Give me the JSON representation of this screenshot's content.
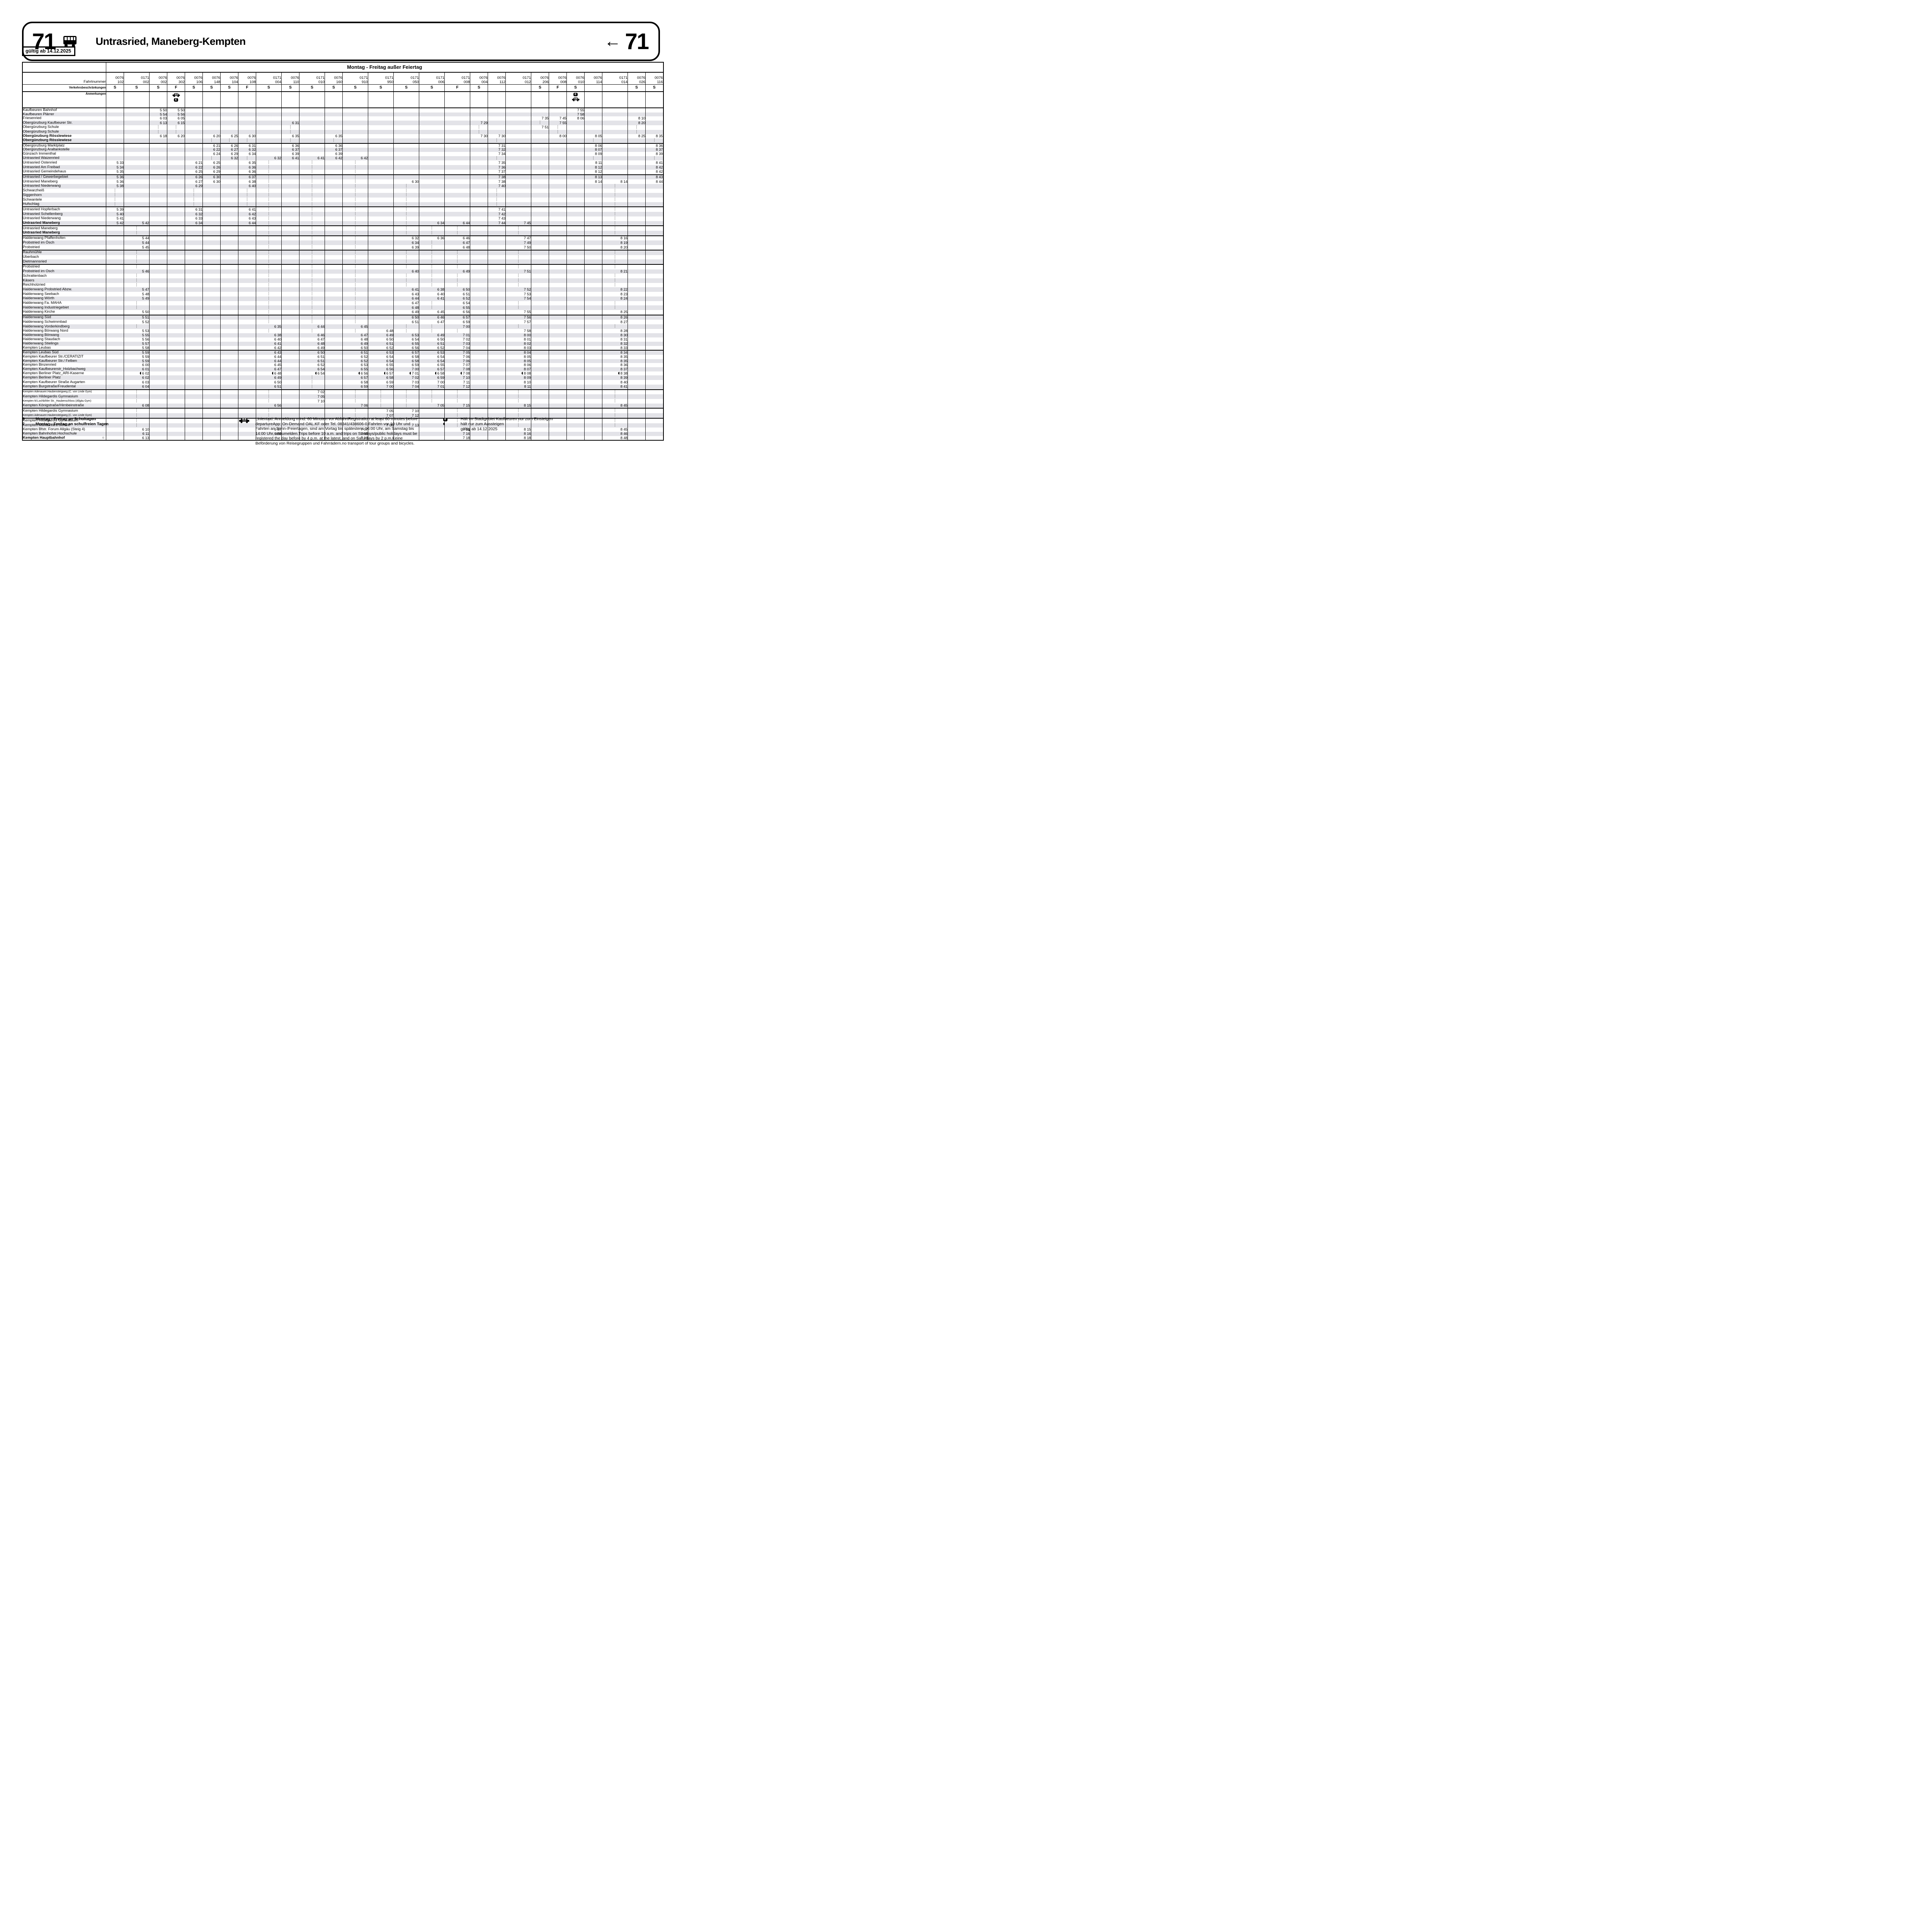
{
  "header": {
    "line_number": "71",
    "title": "Untrasried, Maneberg-Kempten",
    "direction_arrow": "←",
    "line_number_right": "71",
    "valid_from": "gültig ab 14.12.2025",
    "day_header": "Montag - Freitag außer Feiertag"
  },
  "labels": {
    "trip_number": "Fahrtnummer",
    "restrictions": "Verkehrsbeschränkungen",
    "remarks": "Anmerkungen"
  },
  "icons": {
    "bus-icon": "bus pictogram in header",
    "taxi-icon": "TAXI car pictogram (Linientaxi)",
    "e-icon": "E in black square (Einsteigen only in Kaufbeuren)",
    "half-circle-icon": "◖ hält nur zum Aussteigen",
    "circle-icon": "○ at Kempten Hauptbahnhof",
    "arrow-left-icon": "←"
  },
  "colors": {
    "stripe": "#e3e3e8",
    "ink": "#000000",
    "paper": "#ffffff"
  },
  "columns": [
    {
      "fn1": "0076",
      "fn2": "102",
      "r": "S",
      "w": 0,
      "ic": [],
      "t": {
        "13": "5 33",
        "14": "5 34",
        "15": "5 35",
        "16": "5 36",
        "17": "5 36",
        "18": "5 38",
        "23": "5 39",
        "24": "5 40",
        "25": "5 41",
        "26": "5 42"
      }
    },
    {
      "fn1": "0171",
      "fn2": "002",
      "r": "S",
      "w": 1,
      "ic": [],
      "t": {
        "26": "5 42",
        "29": "5 44",
        "30": "5 44",
        "31": "5 45",
        "36": "5 46",
        "40": "5 47",
        "41": "5 48",
        "42": "5 49",
        "45": "5 50",
        "46": "5 51",
        "47": "5 52",
        "49": "5 53",
        "50": "5 55",
        "51": "5 56",
        "52": "5 57",
        "53": "5 58",
        "54": "5 59",
        "55": "5 59",
        "56": "5 59",
        "57": "6 00",
        "58": "6 01",
        "59": "*6 02",
        "60": "6 02",
        "61": "6 03",
        "62": "6 04",
        "66": "6 08",
        "71": "6 10",
        "72": "6 11",
        "73": "6 13"
      }
    },
    {
      "fn1": "0076",
      "fn2": "002",
      "r": "S",
      "w": 0,
      "ic": [],
      "t": {
        "1": "5 50",
        "2": "5 54",
        "3": "6 03",
        "4": "6 13",
        "7": "6 18"
      }
    },
    {
      "fn1": "0076",
      "fn2": "302",
      "r": "F",
      "w": 0,
      "ic": [
        "taxi",
        "e"
      ],
      "t": {
        "1": "5 50",
        "2": "5 56",
        "3": "6 05",
        "4": "6 15",
        "7": "6 20"
      }
    },
    {
      "fn1": "0076",
      "fn2": "106",
      "r": "S",
      "w": 0,
      "ic": [],
      "t": {
        "13": "6 21",
        "14": "6 22",
        "15": "6 25",
        "16": "6 26",
        "17": "6 27",
        "18": "6 29",
        "23": "6 31",
        "24": "6 32",
        "25": "6 33",
        "26": "6 34"
      }
    },
    {
      "fn1": "0076",
      "fn2": "148",
      "r": "S",
      "w": 0,
      "ic": [],
      "t": {
        "7": "6 20",
        "9": "6 21",
        "10": "6 22",
        "11": "6 24",
        "13": "6 25",
        "14": "6 26",
        "15": "6 29",
        "16": "6 30",
        "17": "6 30"
      }
    },
    {
      "fn1": "0076",
      "fn2": "104",
      "r": "S",
      "w": 0,
      "ic": [],
      "t": {
        "7": "6 25",
        "9": "6 26",
        "10": "6 27",
        "11": "6 29",
        "12": "6 32"
      }
    },
    {
      "fn1": "0076",
      "fn2": "108",
      "r": "F",
      "w": 0,
      "ic": [],
      "t": {
        "7": "6 30",
        "9": "6 31",
        "10": "6 32",
        "11": "6 34",
        "13": "6 35",
        "14": "6 36",
        "15": "6 36",
        "16": "6 37",
        "17": "6 38",
        "18": "6 40",
        "23": "6 41",
        "24": "6 42",
        "25": "6 43",
        "26": "6 44"
      }
    },
    {
      "fn1": "0171",
      "fn2": "004",
      "r": "S",
      "w": 1,
      "ic": [],
      "t": {
        "12": "6 32",
        "48": "6 35",
        "50": "6 38",
        "51": "6 40",
        "52": "6 41",
        "53": "6 42",
        "54": "6 43",
        "55": "6 44",
        "56": "6 44",
        "57": "6 45",
        "58": "6 47",
        "59": "*6 48",
        "60": "6 49",
        "61": "6 50",
        "62": "6 51",
        "66": "6 56",
        "71": "6 57",
        "72": "6 58"
      }
    },
    {
      "fn1": "0076",
      "fn2": "110",
      "r": "S",
      "w": 0,
      "ic": [],
      "t": {
        "4": "6 31",
        "7": "6 35",
        "9": "6 36",
        "10": "6 37",
        "11": "6 39",
        "12": "6 41"
      }
    },
    {
      "fn1": "0171",
      "fn2": "010",
      "r": "S",
      "w": 1,
      "ic": [],
      "t": {
        "12": "6 41",
        "48": "6 44",
        "50": "6 46",
        "51": "6 47",
        "52": "6 48",
        "53": "6 49",
        "54": "6 50",
        "55": "6 51",
        "56": "6 51",
        "57": "6 52",
        "58": "6 54",
        "59": "*6 54",
        "63": "7 02",
        "64": "7 05",
        "65": "7 10"
      }
    },
    {
      "fn1": "0076",
      "fn2": "160",
      "r": "S",
      "w": 0,
      "ic": [],
      "t": {
        "7": "6 35",
        "9": "6 36",
        "10": "6 37",
        "11": "6 39",
        "12": "6 42"
      }
    },
    {
      "fn1": "0171",
      "fn2": "910",
      "r": "S",
      "w": 1,
      "ic": [],
      "t": {
        "12": "6 42",
        "48": "6 45",
        "50": "6 47",
        "51": "6 48",
        "52": "6 49",
        "53": "6 50",
        "54": "6 51",
        "55": "6 52",
        "56": "6 52",
        "57": "6 53",
        "58": "6 55",
        "59": "*6 56",
        "60": "6 57",
        "61": "6 58",
        "62": "6 59",
        "66": "7 06",
        "71": "7 07",
        "72": "7 08",
        "73": "7 10"
      }
    },
    {
      "fn1": "0171",
      "fn2": "950",
      "r": "S",
      "w": 1,
      "ic": [],
      "t": {
        "49": "6 48",
        "50": "6 49",
        "51": "6 50",
        "52": "6 51",
        "53": "6 52",
        "54": "6 53",
        "55": "6 54",
        "56": "6 54",
        "57": "6 55",
        "58": "6 56",
        "59": "*6 57",
        "60": "6 58",
        "61": "6 59",
        "62": "7 00",
        "67": "7 05",
        "68": "7 07",
        "70": "7 08"
      }
    },
    {
      "fn1": "0171",
      "fn2": "050",
      "r": "S",
      "w": 1,
      "ic": [],
      "t": {
        "17": "6 30",
        "29": "6 32",
        "30": "6 34",
        "31": "6 39",
        "36": "6 40",
        "40": "6 41",
        "41": "6 43",
        "42": "6 44",
        "43": "6 47",
        "44": "6 48",
        "45": "6 49",
        "46": "6 50",
        "47": "6 51",
        "50": "6 53",
        "51": "6 54",
        "52": "6 55",
        "53": "6 56",
        "54": "6 57",
        "55": "6 58",
        "56": "6 58",
        "57": "6 59",
        "58": "7 00",
        "59": "*7 01",
        "60": "7 02",
        "61": "7 03",
        "62": "7 04",
        "67": "7 10",
        "68": "7 12",
        "70": "7 13"
      }
    },
    {
      "fn1": "0171",
      "fn2": "006",
      "r": "S",
      "w": 1,
      "ic": [],
      "t": {
        "26": "6 34",
        "29": "6 36",
        "40": "6 38",
        "41": "6 40",
        "42": "6 41",
        "45": "6 45",
        "46": "6 46",
        "47": "6 47",
        "50": "6 49",
        "51": "6 50",
        "52": "6 51",
        "53": "6 52",
        "54": "6 53",
        "55": "6 54",
        "56": "6 54",
        "57": "6 55",
        "58": "6 57",
        "59": "*6 58",
        "60": "6 59",
        "61": "7 00",
        "62": "7 01",
        "66": "7 05"
      }
    },
    {
      "fn1": "0171",
      "fn2": "008",
      "r": "F",
      "w": 1,
      "ic": [],
      "t": {
        "26": "6 44",
        "29": "6 46",
        "30": "6 47",
        "31": "6 48",
        "36": "6 49",
        "40": "6 50",
        "41": "6 51",
        "42": "6 52",
        "43": "6 54",
        "44": "6 55",
        "45": "6 56",
        "46": "6 57",
        "47": "6 59",
        "48": "7 00",
        "50": "7 01",
        "51": "7 02",
        "52": "7 03",
        "53": "7 04",
        "54": "7 05",
        "55": "7 06",
        "56": "7 06",
        "57": "7 07",
        "58": "7 08",
        "59": "*7 08",
        "60": "7 10",
        "61": "7 11",
        "62": "7 12",
        "66": "7 15",
        "71": "7 15",
        "72": "7 16",
        "73": "7 18"
      }
    },
    {
      "fn1": "0076",
      "fn2": "004",
      "r": "S",
      "w": 0,
      "ic": [],
      "t": {
        "4": "7 29",
        "7": "7 30"
      }
    },
    {
      "fn1": "0076",
      "fn2": "112",
      "r": "",
      "w": 0,
      "ic": [],
      "t": {
        "7": "7 30",
        "9": "7 31",
        "10": "7 32",
        "11": "7 34",
        "13": "7 35",
        "14": "7 36",
        "15": "7 37",
        "16": "7 38",
        "17": "7 38",
        "18": "7 40",
        "23": "7 41",
        "24": "7 42",
        "25": "7 43",
        "26": "7 44"
      }
    },
    {
      "fn1": "0171",
      "fn2": "012",
      "r": "",
      "w": 1,
      "ic": [],
      "t": {
        "26": "7 45",
        "29": "7 47",
        "30": "7 49",
        "31": "7 50",
        "36": "7 51",
        "40": "7 52",
        "41": "7 53",
        "42": "7 54",
        "45": "7 55",
        "46": "7 56",
        "47": "7 57",
        "49": "7 58",
        "50": "8 00",
        "51": "8 01",
        "52": "8 02",
        "53": "8 03",
        "54": "8 04",
        "55": "8 05",
        "56": "8 05",
        "57": "8 06",
        "58": "8 07",
        "59": "*8 08",
        "60": "8 09",
        "61": "8 10",
        "62": "8 11",
        "66": "8 15",
        "71": "8 15",
        "72": "8 16",
        "73": "8 18"
      }
    },
    {
      "fn1": "0076",
      "fn2": "206",
      "r": "S",
      "w": 0,
      "ic": [],
      "t": {
        "3": "7 35",
        "5": "7 51"
      }
    },
    {
      "fn1": "0076",
      "fn2": "008",
      "r": "F",
      "w": 0,
      "ic": [],
      "t": {
        "3": "7 45",
        "4": "7 55",
        "7": "8 00"
      }
    },
    {
      "fn1": "0076",
      "fn2": "010",
      "r": "S",
      "w": 0,
      "ic": [
        "e",
        "taxi"
      ],
      "t": {
        "1": "7 55",
        "2": "7 58",
        "3": "8 06"
      }
    },
    {
      "fn1": "0076",
      "fn2": "114",
      "r": "",
      "w": 0,
      "ic": [],
      "t": {
        "7": "8 05",
        "9": "8 06",
        "10": "8 07",
        "11": "8 09",
        "13": "8 11",
        "14": "8 12",
        "15": "8 12",
        "16": "8 13",
        "17": "8 14"
      }
    },
    {
      "fn1": "0171",
      "fn2": "014",
      "r": "",
      "w": 1,
      "ic": [],
      "t": {
        "17": "8 14",
        "29": "8 16",
        "30": "8 19",
        "31": "8 20",
        "36": "8 21",
        "40": "8 22",
        "41": "8 23",
        "42": "8 24",
        "45": "8 25",
        "46": "8 26",
        "47": "8 27",
        "49": "8 28",
        "50": "8 30",
        "51": "8 31",
        "52": "8 32",
        "53": "8 33",
        "54": "8 34",
        "55": "8 35",
        "56": "8 35",
        "57": "8 36",
        "58": "8 37",
        "59": "*8 38",
        "60": "8 39",
        "61": "8 40",
        "62": "8 41",
        "66": "8 45",
        "71": "8 45",
        "72": "8 46",
        "73": "8 48"
      }
    },
    {
      "fn1": "0076",
      "fn2": "026",
      "r": "S",
      "w": 0,
      "ic": [],
      "t": {
        "3": "8 10",
        "4": "8 20",
        "7": "8 25"
      }
    },
    {
      "fn1": "0076",
      "fn2": "116",
      "r": "S",
      "w": 0,
      "ic": [],
      "t": {
        "7": "8 35",
        "9": "8 36",
        "10": "8 37",
        "11": "8 39",
        "13": "8 41",
        "14": "8 42",
        "15": "8 42",
        "16": "8 43",
        "17": "8 44"
      }
    }
  ],
  "stops": [
    {
      "n": "Kaufbeuren Bahnhof"
    },
    {
      "n": "Kaufbeuren Plärrer"
    },
    {
      "n": "Friesenried"
    },
    {
      "n": "Obergünzburg Kaufbeurer Str."
    },
    {
      "n": "Obergünzburg Schule"
    },
    {
      "n": "Obergünzburg Schule"
    },
    {
      "n": "Obergünzburg Rösslewiese",
      "b": 1
    },
    {
      "n": "Obergünzburg Rösslewiese",
      "b": 1
    },
    {
      "n": "Obergünzburg Marktplatz"
    },
    {
      "n": "Obergünzburg Araltankstelle"
    },
    {
      "n": "Günzach Immenthal"
    },
    {
      "n": "Untrasried Waizenried"
    },
    {
      "n": "Untrasried Ostenried"
    },
    {
      "n": "Untrasried Am Freibad"
    },
    {
      "n": "Untrasried Gemeindehaus"
    },
    {
      "n": "Untrasried / Gewerbegebiet"
    },
    {
      "n": "Untrasried Maneberg"
    },
    {
      "n": "Untrasried Niederwang"
    },
    {
      "n": "Schwarzheiß"
    },
    {
      "n": "Siggenhorn"
    },
    {
      "n": "Schwantele"
    },
    {
      "n": "Hufschlag"
    },
    {
      "n": "Untrasried Hopferbach"
    },
    {
      "n": "Untrasried Schellenberg"
    },
    {
      "n": "Untrasried Niederwang"
    },
    {
      "n": "Untrasried Maneberg",
      "b": 1
    },
    {
      "n": "Untrasried Maneberg"
    },
    {
      "n": "Untrasried Maneberg",
      "b": 1
    },
    {
      "n": "Haldenwang Pfaffenhofen"
    },
    {
      "n": "Probstried im Ösch"
    },
    {
      "n": "Probstried"
    },
    {
      "n": "Rauhmühle"
    },
    {
      "n": "Überbach"
    },
    {
      "n": "Dietmannsried"
    },
    {
      "n": "Probstried"
    },
    {
      "n": "Probstried im Ösch"
    },
    {
      "n": "Schrattenbach"
    },
    {
      "n": "Käsers"
    },
    {
      "n": "Reichholzried"
    },
    {
      "n": "Haldenwang Probstried Abzw."
    },
    {
      "n": "Haldenwang Seebach"
    },
    {
      "n": "Haldenwang Wörth"
    },
    {
      "n": "Haldenwang Fa. MAHA"
    },
    {
      "n": "Haldenwang Industriegebiet"
    },
    {
      "n": "Haldenwang Kirche"
    },
    {
      "n": "Haldenwang Süd"
    },
    {
      "n": "Haldenwang Schwimmbad"
    },
    {
      "n": "Haldenwang Vorderkindberg"
    },
    {
      "n": "Haldenwang Börwang Nord"
    },
    {
      "n": "Haldenwang Börwang"
    },
    {
      "n": "Haldenwang Staudach"
    },
    {
      "n": "Haldenwang Stielings"
    },
    {
      "n": "Kempten Leubas"
    },
    {
      "n": "Kempten Leubas Süd"
    },
    {
      "n": "Kempten Kaufbeurer Str./CERATIZIT"
    },
    {
      "n": "Kempten Kaufbeurer Str./ Felben"
    },
    {
      "n": "Kempten Binzenried"
    },
    {
      "n": "Kempten Kaufbeurerstr_Holzbachweg"
    },
    {
      "n": "Kempten Berliner Platz_ARI-Kaserne"
    },
    {
      "n": "Kempten Berliner Platz"
    },
    {
      "n": "Kempten Kaufbeurer Straße Augarten"
    },
    {
      "n": "Kempten Burgstraße/Freudental"
    },
    {
      "n": "Kempten  Adenauerr.Haubensteigweg (C. von Linde Gym)",
      "s": 1
    },
    {
      "n": "Kempten Hildegardis Gymnasium"
    },
    {
      "n": "Kempten M.Lochbihler Str._Haubenschloss (Allgäu Gym)",
      "s": 1
    },
    {
      "n": "Kempten Königstraße/Hirnbeinstraße"
    },
    {
      "n": "Kempten Hildegardis Gymnasium"
    },
    {
      "n": "Kempten  Adenauerr.Haubensteigweg (C. von Linde Gym)",
      "s": 1
    },
    {
      "n": "Kempten Hildegardis Gymnasium"
    },
    {
      "n": "Kempten Maria Ward Schule"
    },
    {
      "n": "Kempten Bfstr. Forum Allgäu (Steig 4)"
    },
    {
      "n": "Kempten Bahnhofstr.Hochschule"
    },
    {
      "n": "Kempten Hauptbahnhof",
      "b": 1,
      "c": 1
    }
  ],
  "group_breaks_after": [
    8,
    15,
    22,
    26,
    28,
    31,
    34,
    45,
    53,
    62,
    66,
    68
  ],
  "footer": {
    "legend": [
      {
        "key": "S",
        "text": "Montag - Freitag an Schultagen"
      },
      {
        "key": "F",
        "text": "Montag - Freitag an schulfreien Tagen"
      }
    ],
    "taxi_note": "Linientaxi: Anmeldung mind. 60 Minuten vor AbfahrtRegistration at least 60 minutes before departureApp: On-Demand OAL.KF oder Tel. 08341/438606-0,Fahrten vor 10 Uhr und Fahrten an Sonn-/Feiertagen, sind am Vortag bis spätestens 16:00 Uhr, am Samstag bis 14:00 Uhr, anzumelden.Trips before 10 a.m. and trips on Sundays/public holidays must be registered the day before by 4 p.m. at the latest, and on Saturdays by 2 p.m.Keine Beförderung von Reisegruppen und Fahrrädern.no transport of tour groups and bicycles.",
    "e_note": "Hält im Stadtgebiet Kaufbeuren nur zum Einsteigen",
    "exit_note": "hält nur zum Aussteigen",
    "valid_note": "gültig ab 14.12.2025"
  }
}
